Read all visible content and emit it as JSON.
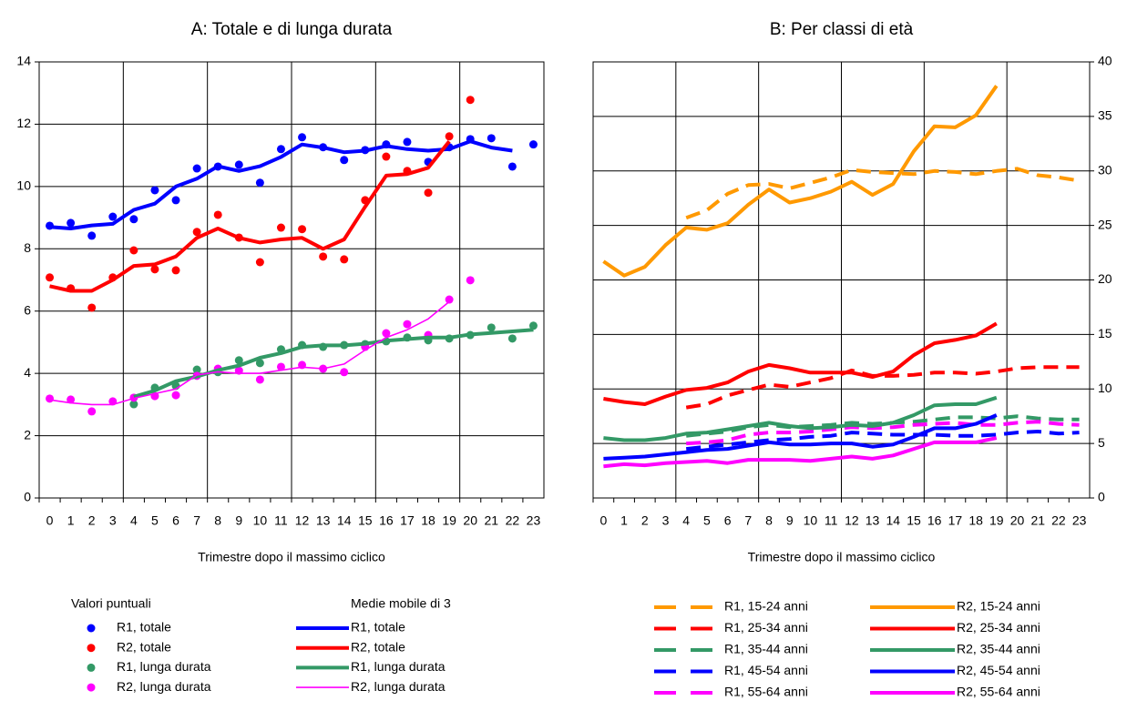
{
  "chart_data": [
    {
      "type": "line",
      "title": "A: Totale e di lunga durata",
      "x_label": "Trimestre dopo il massimo ciclico",
      "categories": [
        "0",
        "1",
        "2",
        "3",
        "4",
        "5",
        "6",
        "7",
        "8",
        "9",
        "10",
        "11",
        "12",
        "13",
        "14",
        "15",
        "16",
        "17",
        "18",
        "19",
        "20",
        "21",
        "22",
        "23"
      ],
      "ylim": [
        0,
        14
      ],
      "yticks": [
        0,
        2,
        4,
        6,
        8,
        10,
        12,
        14
      ],
      "yaxis_side": "left",
      "grid": true,
      "xgrid_every": 4,
      "legend_titles": [
        "Valori puntuali",
        "Medie mobile di 3"
      ],
      "series": [
        {
          "name": "R1, totale",
          "color": "#0000ff",
          "style": "dots",
          "values": [
            8.74,
            8.83,
            8.42,
            9.03,
            8.95,
            9.88,
            9.56,
            10.58,
            10.64,
            10.7,
            10.12,
            11.2,
            11.58,
            11.26,
            10.85,
            11.17,
            11.35,
            11.43,
            10.79,
            11.26,
            11.52,
            11.55,
            10.64,
            11.35
          ]
        },
        {
          "name": "R2, totale",
          "color": "#ff0000",
          "style": "dots",
          "values": [
            7.08,
            6.73,
            6.11,
            7.08,
            7.95,
            7.34,
            7.31,
            8.54,
            9.09,
            8.36,
            7.57,
            8.68,
            8.63,
            7.75,
            7.66,
            9.56,
            10.96,
            10.5,
            9.8,
            11.61,
            12.78,
            null,
            null,
            null
          ]
        },
        {
          "name": "R1, lunga durata",
          "color": "#339966",
          "style": "dots",
          "values": [
            null,
            null,
            null,
            null,
            3.01,
            3.54,
            3.6,
            4.12,
            4.04,
            4.42,
            4.33,
            4.77,
            4.91,
            4.85,
            4.91,
            4.94,
            5.03,
            5.15,
            5.06,
            5.12,
            5.23,
            5.47,
            5.12,
            5.53
          ]
        },
        {
          "name": "R2, lunga durata",
          "color": "#ff00ff",
          "style": "dots",
          "values": [
            3.19,
            3.16,
            2.78,
            3.1,
            3.22,
            3.27,
            3.3,
            3.92,
            4.15,
            4.09,
            3.8,
            4.21,
            4.27,
            4.15,
            4.04,
            4.85,
            5.29,
            5.58,
            5.23,
            6.37,
            6.99,
            null,
            null,
            null
          ]
        },
        {
          "name": "R1, totale",
          "color": "#0000ff",
          "style": "line",
          "values": [
            8.7,
            8.65,
            8.75,
            8.8,
            9.25,
            9.45,
            10.0,
            10.25,
            10.65,
            10.5,
            10.65,
            10.95,
            11.35,
            11.25,
            11.1,
            11.15,
            11.3,
            11.2,
            11.15,
            11.2,
            11.45,
            11.25,
            11.15,
            null
          ]
        },
        {
          "name": "R2, totale",
          "color": "#ff0000",
          "style": "line",
          "values": [
            6.8,
            6.65,
            6.65,
            7.0,
            7.45,
            7.5,
            7.75,
            8.35,
            8.65,
            8.35,
            8.2,
            8.3,
            8.35,
            8.0,
            8.3,
            9.35,
            10.35,
            10.4,
            10.6,
            11.45,
            null,
            null,
            null,
            null
          ]
        },
        {
          "name": "R1, lunga durata",
          "color": "#339966",
          "style": "line",
          "values": [
            null,
            null,
            null,
            null,
            3.25,
            3.45,
            3.75,
            3.9,
            4.1,
            4.25,
            4.5,
            4.65,
            4.85,
            4.9,
            4.9,
            4.95,
            5.05,
            5.1,
            5.15,
            5.15,
            5.25,
            5.3,
            5.35,
            5.4
          ]
        },
        {
          "name": "R2, lunga durata",
          "color": "#ff00ff",
          "style": "thin",
          "values": [
            3.15,
            3.05,
            3.0,
            3.0,
            3.2,
            3.35,
            3.5,
            3.95,
            4.05,
            4.0,
            4.0,
            4.1,
            4.2,
            4.15,
            4.3,
            4.75,
            5.15,
            5.4,
            5.75,
            6.3,
            null,
            null,
            null,
            null
          ]
        }
      ]
    },
    {
      "type": "line",
      "title": "B: Per classi di età",
      "x_label": "Trimestre dopo il massimo ciclico",
      "categories": [
        "0",
        "1",
        "2",
        "3",
        "4",
        "5",
        "6",
        "7",
        "8",
        "9",
        "10",
        "11",
        "12",
        "13",
        "14",
        "15",
        "16",
        "17",
        "18",
        "19",
        "20",
        "21",
        "22",
        "23"
      ],
      "ylim": [
        0,
        40
      ],
      "yticks": [
        0,
        5,
        10,
        15,
        20,
        25,
        30,
        35,
        40
      ],
      "yaxis_side": "right",
      "grid": true,
      "xgrid_every": 4,
      "series": [
        {
          "name": "R1, 15-24 anni",
          "color": "#ff9900",
          "style": "dashed",
          "values": [
            null,
            null,
            null,
            null,
            25.7,
            26.4,
            27.9,
            28.7,
            28.8,
            28.4,
            28.9,
            29.4,
            30.1,
            29.9,
            29.8,
            29.7,
            30.0,
            29.9,
            29.7,
            30.0,
            30.2,
            29.6,
            29.4,
            29.1
          ]
        },
        {
          "name": "R1, 25-34 anni",
          "color": "#ff0000",
          "style": "dashed",
          "values": [
            null,
            null,
            null,
            null,
            8.3,
            8.6,
            9.4,
            9.9,
            10.4,
            10.2,
            10.6,
            11.0,
            11.7,
            11.2,
            11.2,
            11.3,
            11.5,
            11.5,
            11.4,
            11.6,
            11.9,
            12.0,
            12.0,
            12.0
          ]
        },
        {
          "name": "R1, 35-44 anni",
          "color": "#339966",
          "style": "dashed",
          "values": [
            null,
            null,
            null,
            null,
            5.7,
            5.9,
            6.1,
            6.5,
            6.7,
            6.5,
            6.6,
            6.7,
            6.9,
            6.8,
            6.9,
            7.0,
            7.2,
            7.4,
            7.4,
            7.3,
            7.5,
            7.3,
            7.2,
            7.2
          ]
        },
        {
          "name": "R1, 45-54 anni",
          "color": "#0000ff",
          "style": "dashed",
          "values": [
            null,
            null,
            null,
            null,
            4.5,
            4.7,
            4.9,
            5.1,
            5.3,
            5.4,
            5.6,
            5.7,
            6.0,
            5.9,
            5.8,
            5.8,
            5.8,
            5.7,
            5.7,
            5.8,
            6.0,
            6.1,
            5.9,
            6.0
          ]
        },
        {
          "name": "R1, 55-64 anni",
          "color": "#ff00ff",
          "style": "dashed",
          "values": [
            null,
            null,
            null,
            null,
            5.0,
            5.1,
            5.3,
            5.8,
            6.0,
            6.0,
            6.1,
            6.3,
            6.5,
            6.4,
            6.5,
            6.7,
            6.8,
            6.9,
            6.7,
            6.7,
            6.9,
            7.0,
            6.8,
            6.7
          ]
        },
        {
          "name": "R2, 15-24 anni",
          "color": "#ff9900",
          "style": "line",
          "values": [
            21.7,
            20.4,
            21.2,
            23.2,
            24.8,
            24.6,
            25.2,
            26.9,
            28.3,
            27.1,
            27.5,
            28.1,
            29.0,
            27.8,
            28.8,
            31.8,
            34.1,
            34.0,
            35.1,
            37.8,
            null,
            null,
            null,
            null
          ]
        },
        {
          "name": "R2, 25-34 anni",
          "color": "#ff0000",
          "style": "line",
          "values": [
            9.1,
            8.8,
            8.6,
            9.3,
            9.9,
            10.1,
            10.6,
            11.6,
            12.2,
            11.9,
            11.5,
            11.5,
            11.5,
            11.1,
            11.6,
            13.1,
            14.2,
            14.5,
            14.9,
            16.0,
            null,
            null,
            null,
            null
          ]
        },
        {
          "name": "R2, 35-44 anni",
          "color": "#339966",
          "style": "line",
          "values": [
            5.5,
            5.3,
            5.3,
            5.5,
            5.9,
            6.0,
            6.3,
            6.6,
            6.9,
            6.6,
            6.4,
            6.5,
            6.7,
            6.6,
            6.9,
            7.6,
            8.5,
            8.6,
            8.6,
            9.2,
            null,
            null,
            null,
            null
          ]
        },
        {
          "name": "R2, 45-54 anni",
          "color": "#0000ff",
          "style": "line",
          "values": [
            3.6,
            3.7,
            3.8,
            4.0,
            4.2,
            4.4,
            4.5,
            4.8,
            5.1,
            4.9,
            4.9,
            5.0,
            5.0,
            4.7,
            4.9,
            5.6,
            6.4,
            6.4,
            6.8,
            7.6,
            null,
            null,
            null,
            null
          ]
        },
        {
          "name": "R2, 55-64 anni",
          "color": "#ff00ff",
          "style": "line",
          "values": [
            2.9,
            3.1,
            3.0,
            3.2,
            3.3,
            3.4,
            3.2,
            3.5,
            3.5,
            3.5,
            3.4,
            3.6,
            3.8,
            3.6,
            3.9,
            4.5,
            5.1,
            5.1,
            5.1,
            5.5,
            null,
            null,
            null,
            null
          ]
        }
      ]
    }
  ]
}
